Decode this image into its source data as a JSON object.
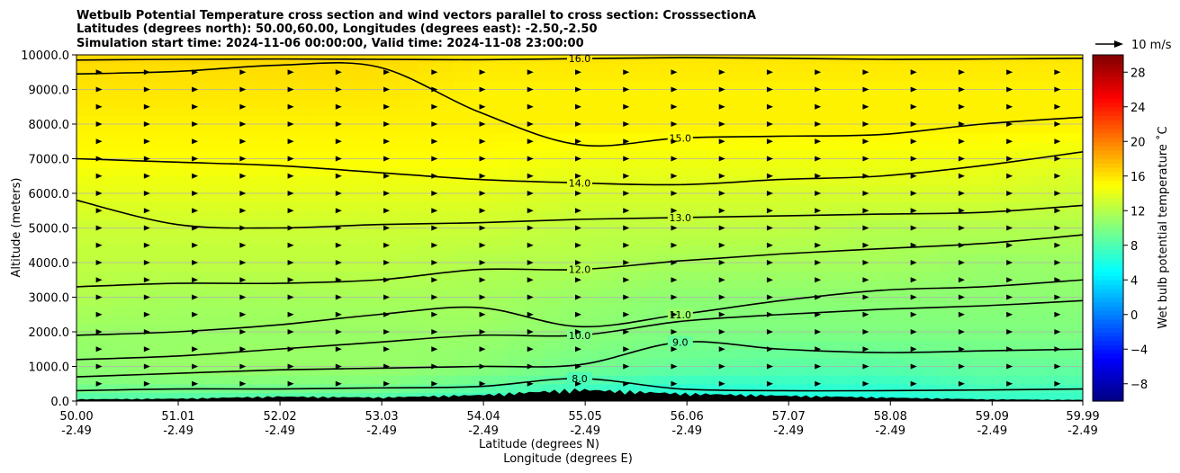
{
  "chart_data": {
    "type": "heatmap",
    "title_lines": [
      "Wetbulb Potential Temperature cross section and wind vectors parallel to cross section: CrosssectionA",
      "Latitudes (degrees north): 50.00,60.00, Longitudes (degrees east): -2.50,-2.50",
      "Simulation start time: 2024-11-06 00:00:00, Valid time: 2024-11-08 23:00:00"
    ],
    "xlabel": "Latitude (degrees N)",
    "xlabel2": "Longitude (degrees E)",
    "ylabel": "Altitude (meters)",
    "x_ticks": [
      {
        "lat": "50.00",
        "lon": "-2.49"
      },
      {
        "lat": "51.01",
        "lon": "-2.49"
      },
      {
        "lat": "52.02",
        "lon": "-2.49"
      },
      {
        "lat": "53.03",
        "lon": "-2.49"
      },
      {
        "lat": "54.04",
        "lon": "-2.49"
      },
      {
        "lat": "55.05",
        "lon": "-2.49"
      },
      {
        "lat": "56.06",
        "lon": "-2.49"
      },
      {
        "lat": "57.07",
        "lon": "-2.49"
      },
      {
        "lat": "58.08",
        "lon": "-2.49"
      },
      {
        "lat": "59.09",
        "lon": "-2.49"
      },
      {
        "lat": "59.99",
        "lon": "-2.49"
      }
    ],
    "xlim": [
      50.0,
      59.99
    ],
    "y_ticks": [
      "0.0",
      "1000.0",
      "2000.0",
      "3000.0",
      "4000.0",
      "5000.0",
      "6000.0",
      "7000.0",
      "8000.0",
      "9000.0",
      "10000.0"
    ],
    "ylim": [
      0,
      10000
    ],
    "grid": "horizontal",
    "colorbar": {
      "label": "Wet bulb potential temperature $^\\circ$C",
      "label_text": "Wet bulb potential temperature ˚C",
      "range": [
        -10,
        30
      ],
      "ticks": [
        "28",
        "24",
        "20",
        "16",
        "12",
        "8",
        "4",
        "0",
        "−4",
        "−8"
      ],
      "tick_values": [
        28,
        24,
        20,
        16,
        12,
        8,
        4,
        0,
        -4,
        -8
      ],
      "colormap": "jet"
    },
    "quiver_key": {
      "label": "10 m/s",
      "speed": 10
    },
    "contours": [
      {
        "level": 16.0,
        "label": "16.0",
        "alt": [
          9850,
          9870,
          9880,
          9870,
          9860,
          9890,
          9920,
          9900,
          9870,
          9880,
          9900
        ]
      },
      {
        "level": 15.0,
        "label": "15.0",
        "alt": [
          9450,
          9520,
          9700,
          9650,
          8350,
          7400,
          7600,
          7650,
          7700,
          8000,
          8200
        ]
      },
      {
        "level": 14.0,
        "label": "14.0",
        "alt": [
          7000,
          6900,
          6800,
          6600,
          6400,
          6300,
          6250,
          6400,
          6500,
          6800,
          7200
        ]
      },
      {
        "level": 13.0,
        "label": "13.0",
        "alt": [
          5800,
          5100,
          5000,
          5100,
          5150,
          5250,
          5300,
          5350,
          5400,
          5450,
          5650
        ]
      },
      {
        "level": 12.0,
        "label": "12.0",
        "alt": [
          3300,
          3400,
          3400,
          3500,
          3800,
          3800,
          4050,
          4250,
          4400,
          4550,
          4800
        ]
      },
      {
        "level": 11.0,
        "label": "11.0",
        "alt": [
          1900,
          2000,
          2200,
          2500,
          2700,
          2150,
          2500,
          2900,
          3200,
          3300,
          3500
        ]
      },
      {
        "level": 10.0,
        "label": "10.0",
        "alt": [
          1200,
          1300,
          1500,
          1700,
          1900,
          1900,
          2300,
          2500,
          2650,
          2750,
          2900
        ]
      },
      {
        "level": 9.0,
        "label": "9.0",
        "alt": [
          700,
          800,
          900,
          950,
          1000,
          1050,
          1700,
          1500,
          1400,
          1450,
          1500
        ]
      },
      {
        "level": 8.0,
        "label": "8.0",
        "alt": [
          300,
          350,
          350,
          380,
          420,
          650,
          350,
          300,
          300,
          320,
          350
        ]
      }
    ],
    "temperature_field": {
      "levels_alt": [
        0,
        500,
        1000,
        2000,
        3000,
        4000,
        5000,
        6000,
        7000,
        8000,
        9000,
        10000
      ],
      "columns_lat": [
        50.0,
        51.0,
        52.0,
        53.0,
        54.0,
        55.0,
        56.0,
        57.0,
        58.0,
        59.0,
        60.0
      ],
      "values": [
        [
          8,
          8,
          8,
          8,
          7,
          6,
          6,
          6,
          6,
          7,
          7
        ],
        [
          10,
          10,
          10,
          10,
          9,
          8,
          7,
          7,
          7,
          8,
          8
        ],
        [
          10.5,
          11,
          11,
          11,
          10.5,
          9.5,
          9,
          8.5,
          8.5,
          9,
          9
        ],
        [
          11,
          11,
          11,
          11,
          11,
          10.5,
          10,
          10,
          10,
          10,
          10
        ],
        [
          12,
          11.5,
          11.5,
          11.5,
          11.5,
          11,
          10.5,
          10.5,
          10.5,
          10.5,
          10.5
        ],
        [
          12.5,
          12.5,
          12.5,
          12.5,
          12,
          12,
          11.5,
          11.5,
          11.5,
          11,
          11
        ],
        [
          13,
          13,
          13,
          13,
          13,
          12.5,
          12.5,
          12.5,
          12,
          12,
          12
        ],
        [
          14,
          14,
          14,
          14,
          14,
          13.5,
          13.5,
          13.5,
          13.5,
          13.5,
          13
        ],
        [
          15,
          15,
          15,
          15,
          15,
          14.5,
          14.5,
          14.5,
          14.5,
          14.5,
          14
        ],
        [
          15.5,
          15.5,
          15.5,
          15.5,
          15.5,
          15.5,
          15.5,
          15.5,
          15.5,
          15.5,
          15.5
        ],
        [
          16,
          16,
          16,
          16,
          15.5,
          15.5,
          15.5,
          15.5,
          15.5,
          15.5,
          15.5
        ],
        [
          16.5,
          16.5,
          16.5,
          16.5,
          16,
          16,
          16,
          16,
          16,
          16,
          16
        ]
      ]
    },
    "wind": {
      "rows_alt": [
        500,
        1000,
        1500,
        2000,
        2500,
        3000,
        3500,
        4000,
        4500,
        5000,
        5500,
        6000,
        6500,
        7000,
        7500,
        8000,
        8500,
        9000,
        9500
      ],
      "note_units": "m/s along cross section",
      "u_by_row": [
        [
          0,
          0,
          0,
          0,
          0,
          0,
          0,
          0,
          0,
          0,
          0,
          0,
          0,
          0,
          0,
          0,
          0,
          0,
          0,
          0,
          0
        ],
        [
          0,
          0,
          0,
          0,
          0,
          0,
          0,
          0,
          0,
          0,
          0,
          0,
          0,
          0,
          0,
          0,
          0,
          0,
          0,
          0,
          0
        ],
        [
          0,
          0,
          0,
          0,
          0,
          0,
          0,
          0,
          0,
          0,
          0,
          0,
          0,
          0,
          0,
          0,
          0,
          0,
          0,
          0,
          0
        ],
        [
          0,
          0,
          0,
          0,
          0,
          0,
          0,
          0,
          0,
          0,
          0,
          0,
          0,
          0,
          0,
          0,
          0,
          0,
          0,
          0,
          0
        ],
        [
          0,
          0,
          0,
          0,
          0,
          0,
          0,
          0,
          0,
          0,
          0,
          0,
          0,
          0,
          0,
          0,
          0,
          0,
          0,
          0,
          0
        ],
        [
          0,
          0,
          0,
          0,
          0,
          0,
          0,
          0,
          0,
          0,
          0,
          0,
          0,
          0,
          0,
          0,
          0,
          0,
          0,
          0,
          0
        ],
        [
          0,
          0,
          0,
          0,
          0,
          0,
          0,
          0,
          0,
          0,
          0,
          0,
          0,
          0,
          0,
          0,
          0,
          0,
          0,
          0,
          0
        ],
        [
          0,
          0,
          0,
          0,
          0,
          0,
          0,
          0,
          0,
          0,
          0,
          0,
          0,
          0,
          0,
          0,
          0,
          0,
          0,
          0,
          0
        ],
        [
          0,
          0,
          0,
          0,
          0,
          0,
          0,
          0,
          0,
          0,
          0,
          0,
          0,
          0,
          0,
          0,
          0,
          0,
          0,
          0,
          0
        ],
        [
          0,
          0,
          0,
          0,
          0,
          0,
          0,
          0,
          0,
          0,
          0,
          0,
          0,
          0,
          0,
          0,
          0,
          0,
          0,
          0,
          0
        ],
        [
          0,
          0,
          0,
          0,
          0,
          0,
          0,
          0,
          0,
          0,
          0,
          0,
          0,
          0,
          0,
          0,
          0,
          0,
          0,
          0,
          0
        ],
        [
          0,
          0,
          0,
          0,
          0,
          0,
          0,
          0,
          0,
          0,
          0,
          0,
          0,
          0,
          0,
          0,
          0,
          0,
          0,
          0,
          0
        ],
        [
          0,
          0,
          0,
          0,
          0,
          0,
          0,
          0,
          0,
          0,
          0,
          0,
          0,
          0,
          0,
          0,
          0,
          0,
          0,
          0,
          0
        ],
        [
          0,
          0,
          0,
          0,
          0,
          0,
          0,
          0,
          0,
          0,
          0,
          0,
          0,
          0,
          0,
          0,
          0,
          0,
          0,
          0,
          0
        ],
        [
          0,
          0,
          0,
          0,
          0,
          0,
          0,
          0,
          0,
          0,
          0,
          0,
          0,
          0,
          0,
          0,
          0,
          0,
          0,
          0,
          0
        ],
        [
          0,
          0,
          0,
          0,
          0,
          0,
          0,
          0,
          0,
          0,
          0,
          0,
          0,
          0,
          0,
          0,
          0,
          0,
          0,
          0,
          0
        ],
        [
          0,
          0,
          0,
          0,
          0,
          0,
          0,
          0,
          0,
          0,
          0,
          0,
          0,
          0,
          0,
          0,
          0,
          0,
          0,
          0,
          0
        ],
        [
          0,
          0,
          0,
          0,
          0,
          0,
          0,
          0,
          0,
          0,
          0,
          0,
          0,
          0,
          0,
          0,
          0,
          0,
          0,
          0,
          0
        ],
        [
          0,
          0,
          0,
          0,
          0,
          0,
          0,
          0,
          0,
          0,
          0,
          0,
          0,
          0,
          0,
          0,
          0,
          0,
          0,
          0,
          0
        ]
      ]
    },
    "terrain_alt": [
      60,
      80,
      150,
      120,
      200,
      380,
      250,
      180,
      120,
      60,
      40
    ],
    "colors": {
      "terrain": "#000000",
      "contour": "#000000",
      "grid": "#b0b0b0"
    }
  }
}
